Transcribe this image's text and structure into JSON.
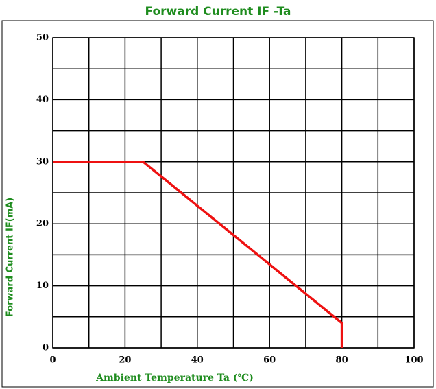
{
  "chart_data": {
    "type": "line",
    "title": "Forward Current IF -Ta",
    "xlabel": "Ambient Temperature Ta (℃)",
    "ylabel": "Forward Current IF(mA)",
    "x": [
      0,
      25,
      80,
      80
    ],
    "series": [
      {
        "color": "#ee1111",
        "values": [
          30,
          30,
          4,
          0
        ]
      }
    ],
    "xlim": [
      0,
      100
    ],
    "xticks": [
      0,
      20,
      40,
      60,
      80,
      100
    ],
    "xminorticks": [
      10,
      30,
      50,
      70,
      90
    ],
    "ylim": [
      0,
      50
    ],
    "yticks": [
      0,
      10,
      20,
      30,
      40,
      50
    ],
    "yminorticks": [
      5,
      15,
      25,
      35,
      45
    ],
    "grid": true
  }
}
